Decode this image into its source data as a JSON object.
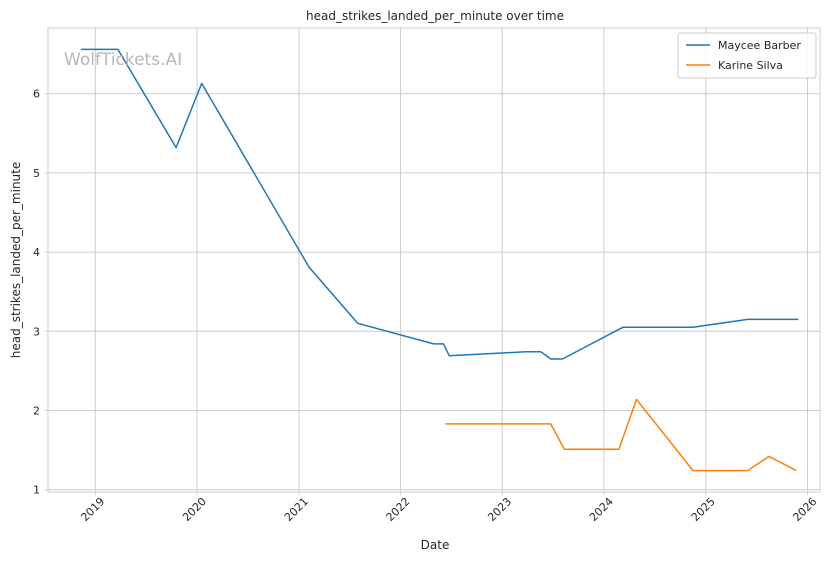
{
  "chart_data": {
    "type": "line",
    "title": "head_strikes_landed_per_minute over time",
    "xlabel": "Date",
    "ylabel": "head_strikes_landed_per_minute",
    "watermark": "WolfTickets.AI",
    "x_axis": "date",
    "xlim": [
      "2018-07-15",
      "2026-02-15"
    ],
    "ylim": [
      0.97,
      6.83
    ],
    "x_ticks": [
      "2019",
      "2020",
      "2021",
      "2022",
      "2023",
      "2024",
      "2025",
      "2026"
    ],
    "y_ticks": [
      "1",
      "2",
      "3",
      "4",
      "5",
      "6"
    ],
    "grid": true,
    "legend_position": "top-right",
    "series": [
      {
        "name": "Maycee Barber",
        "color": "#1f77b4",
        "x": [
          "2018-11-10",
          "2019-03-23",
          "2019-10-18",
          "2020-01-18",
          "2021-02-06",
          "2021-07-31",
          "2022-04-30",
          "2022-06-04",
          "2022-06-25",
          "2023-03-25",
          "2023-05-20",
          "2023-06-24",
          "2023-08-05",
          "2024-03-09",
          "2024-11-16",
          "2025-05-31",
          "2025-11-29"
        ],
        "y": [
          6.56,
          6.56,
          5.32,
          6.13,
          3.81,
          3.1,
          2.84,
          2.84,
          2.69,
          2.74,
          2.74,
          2.65,
          2.65,
          3.05,
          3.05,
          3.15,
          3.15
        ]
      },
      {
        "name": "Karine Silva",
        "color": "#ff7f0e",
        "x": [
          "2022-06-11",
          "2023-06-24",
          "2023-08-12",
          "2024-02-24",
          "2024-04-27",
          "2024-11-16",
          "2025-05-31",
          "2025-08-16",
          "2025-11-22"
        ],
        "y": [
          1.83,
          1.83,
          1.51,
          1.51,
          2.14,
          1.24,
          1.24,
          1.42,
          1.24
        ]
      }
    ]
  }
}
